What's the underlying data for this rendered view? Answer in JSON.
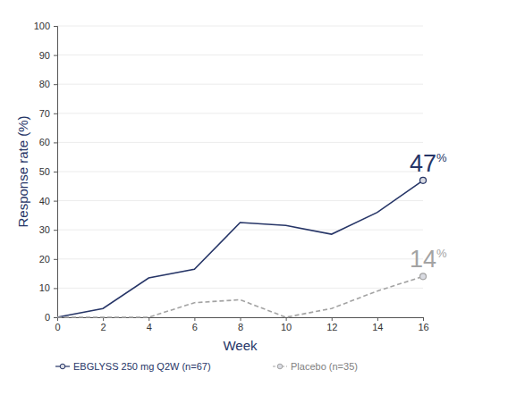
{
  "chart_data": {
    "type": "line",
    "x_label": "Week",
    "y_label": "Response rate (%)",
    "x": [
      0,
      2,
      4,
      6,
      8,
      10,
      12,
      14,
      16
    ],
    "series": [
      {
        "name": "EBGLYSS 250 mg Q2W (n=67)",
        "color": "#263567",
        "line_style": "solid",
        "marker": "circle",
        "values": [
          0,
          3,
          13.5,
          16.5,
          32.5,
          31.5,
          28.5,
          36,
          47
        ]
      },
      {
        "name": "Placebo (n=35)",
        "color": "#a3a3a3",
        "line_style": "dashed",
        "marker": "circle",
        "values": [
          0,
          0,
          0,
          5,
          6,
          0,
          3,
          9,
          14
        ]
      }
    ],
    "annotations": [
      {
        "text": "47%",
        "x": 16,
        "y": 47,
        "color": "#263567"
      },
      {
        "text": "14%",
        "x": 16,
        "y": 14,
        "color": "#a3a3a3"
      }
    ],
    "xlim": [
      0,
      16
    ],
    "xticks": [
      0,
      2,
      4,
      6,
      8,
      10,
      12,
      14,
      16
    ],
    "ylim": [
      0,
      100
    ],
    "yticks": [
      0,
      10,
      20,
      30,
      40,
      50,
      60,
      70,
      80,
      90,
      100
    ],
    "grid": true,
    "legend": "bottom"
  }
}
